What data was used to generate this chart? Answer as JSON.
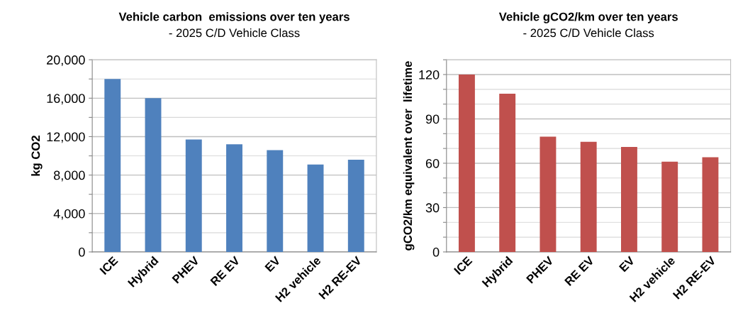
{
  "chart_data": [
    {
      "type": "bar",
      "title": "Vehicle carbon  emissions over ten years",
      "subtitle": "- 2025 C/D Vehicle Class",
      "ylabel": "kg CO2",
      "categories": [
        "ICE",
        "Hybrid",
        "PHEV",
        "RE EV",
        "EV",
        "H2 vehicle",
        "H2 RE-EV"
      ],
      "values": [
        18000,
        16000,
        11700,
        11200,
        10600,
        9100,
        9600
      ],
      "color": "#4f81bd",
      "ylim": [
        0,
        20000
      ],
      "yticks": [
        {
          "value": 0,
          "label": "0"
        },
        {
          "value": 2000,
          "label": null
        },
        {
          "value": 4000,
          "label": "4,000"
        },
        {
          "value": 6000,
          "label": null
        },
        {
          "value": 8000,
          "label": "8,000"
        },
        {
          "value": 10000,
          "label": null
        },
        {
          "value": 12000,
          "label": "12,000"
        },
        {
          "value": 14000,
          "label": null
        },
        {
          "value": 16000,
          "label": "16,000"
        },
        {
          "value": 18000,
          "label": null
        },
        {
          "value": 20000,
          "label": "20,000"
        }
      ],
      "grid": "y",
      "legend": false
    },
    {
      "type": "bar",
      "title": "Vehicle gCO2/km over ten years",
      "subtitle": "- 2025 C/D Vehicle Class",
      "ylabel": "gCO2/km equivalent over  lifetime",
      "categories": [
        "ICE",
        "Hybrid",
        "PHEV",
        "RE EV",
        "EV",
        "H2 vehicle",
        "H2 RE-EV"
      ],
      "values": [
        120,
        107,
        78,
        74.5,
        71,
        61,
        64
      ],
      "color": "#c0504d",
      "ylim": [
        0,
        130
      ],
      "yticks": [
        {
          "value": 0,
          "label": "0"
        },
        {
          "value": 10,
          "label": null
        },
        {
          "value": 20,
          "label": null
        },
        {
          "value": 30,
          "label": "30"
        },
        {
          "value": 40,
          "label": null
        },
        {
          "value": 50,
          "label": null
        },
        {
          "value": 60,
          "label": "60"
        },
        {
          "value": 70,
          "label": null
        },
        {
          "value": 80,
          "label": null
        },
        {
          "value": 90,
          "label": "90"
        },
        {
          "value": 100,
          "label": null
        },
        {
          "value": 110,
          "label": null
        },
        {
          "value": 120,
          "label": "120"
        },
        {
          "value": 130,
          "label": null
        }
      ],
      "grid": "y",
      "legend": false
    }
  ]
}
